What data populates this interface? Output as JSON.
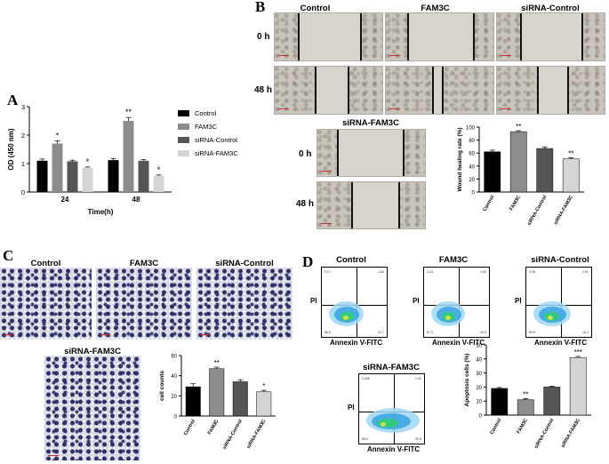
{
  "panels": {
    "a": "A",
    "b": "B",
    "c": "C",
    "d": "D"
  },
  "panel_a": {
    "legend": [
      {
        "name": "Control",
        "color": "#000000"
      },
      {
        "name": "FAM3C",
        "color": "#8c8c8c"
      },
      {
        "name": "siRNA-Control",
        "color": "#555555"
      },
      {
        "name": "siRNA-FAM3C",
        "color": "#d4d4d4"
      }
    ]
  },
  "panel_b": {
    "col_headers": [
      "Control",
      "FAM3C",
      "siRNA-Control"
    ],
    "row_labels": [
      "0 h",
      "48 h"
    ],
    "sub_header": "siRNA-FAM3C",
    "sub_row_labels": [
      "0 h",
      "48 h"
    ]
  },
  "panel_c": {
    "headers": [
      "Control",
      "FAM3C",
      "siRNA-Control"
    ],
    "sub_header": "siRNA-FAM3C"
  },
  "panel_d": {
    "headers": [
      "Control",
      "FAM3C",
      "siRNA-Control"
    ],
    "sub_header": "siRNA-FAM3C",
    "x_label": "Annexin V-FITC",
    "y_label": "PI",
    "quadrants": [
      {
        "q1": "0.17",
        "q2": "1.60",
        "q3": "11.7",
        "q4": "86.5"
      },
      {
        "q1": "0.24",
        "q2": "1.62",
        "q3": "10.9",
        "q4": "87.3"
      },
      {
        "q1": "0.36",
        "q2": "2.61",
        "q3": "16.2",
        "q4": "80.8"
      },
      {
        "q1": "0.036",
        "q2": "1.42",
        "q3": "39.6",
        "q4": "58.9"
      }
    ]
  },
  "chart_data": [
    {
      "type": "bar",
      "id": "A",
      "categories": [
        "24",
        "48"
      ],
      "xlabel": "Time(h)",
      "ylabel": "OD (450 nm)",
      "ylim": [
        0,
        3
      ],
      "yticks": [
        0,
        1,
        2,
        3
      ],
      "series": [
        {
          "name": "Control",
          "values": [
            1.1,
            1.12
          ],
          "errors": [
            0.06,
            0.06
          ],
          "sig": [
            "",
            ""
          ],
          "color": "#000000"
        },
        {
          "name": "FAM3C",
          "values": [
            1.7,
            2.5
          ],
          "errors": [
            0.1,
            0.12
          ],
          "sig": [
            "*",
            "**"
          ],
          "color": "#8c8c8c"
        },
        {
          "name": "siRNA-Control",
          "values": [
            1.08,
            1.1
          ],
          "errors": [
            0.04,
            0.04
          ],
          "sig": [
            "",
            ""
          ],
          "color": "#555555"
        },
        {
          "name": "siRNA-FAM3C",
          "values": [
            0.85,
            0.57
          ],
          "errors": [
            0.03,
            0.03
          ],
          "sig": [
            "*",
            "*"
          ],
          "color": "#d4d4d4"
        }
      ]
    },
    {
      "type": "bar",
      "id": "B",
      "categories": [
        "Control",
        "FAM3C",
        "siRNA-Control",
        "siRNA-FAM3C"
      ],
      "ylabel": "Wound healing rate (%)",
      "ylim": [
        0,
        100
      ],
      "yticks": [
        0,
        20,
        40,
        60,
        80,
        100
      ],
      "values": [
        62,
        93,
        67,
        51
      ],
      "errors": [
        2.5,
        1.5,
        2.5,
        2
      ],
      "sig": [
        "",
        "**",
        "",
        "**"
      ],
      "colors": [
        "#000000",
        "#8c8c8c",
        "#555555",
        "#d4d4d4"
      ]
    },
    {
      "type": "bar",
      "id": "C",
      "categories": [
        "Control",
        "FAM3C",
        "siRNA-Control",
        "siRNA-FAM3C"
      ],
      "ylabel": "cell counts",
      "ylim": [
        0,
        60
      ],
      "yticks": [
        0,
        20,
        40,
        60
      ],
      "values": [
        29,
        47,
        34,
        24
      ],
      "errors": [
        3,
        1.5,
        2,
        1.5
      ],
      "sig": [
        "",
        "**",
        "",
        "*"
      ],
      "colors": [
        "#000000",
        "#8c8c8c",
        "#555555",
        "#d4d4d4"
      ]
    },
    {
      "type": "bar",
      "id": "D",
      "categories": [
        "Control",
        "FAM3C",
        "siRNA-Control",
        "siRNA-FAM3C"
      ],
      "ylabel": "Apoptosis cells (%)",
      "ylim": [
        0,
        50
      ],
      "yticks": [
        0,
        10,
        20,
        30,
        40,
        50
      ],
      "values": [
        19,
        11,
        20,
        41
      ],
      "errors": [
        0.7,
        0.8,
        0.6,
        0.8
      ],
      "sig": [
        "",
        "**",
        "",
        "***"
      ],
      "colors": [
        "#000000",
        "#8c8c8c",
        "#555555",
        "#d4d4d4"
      ]
    }
  ]
}
